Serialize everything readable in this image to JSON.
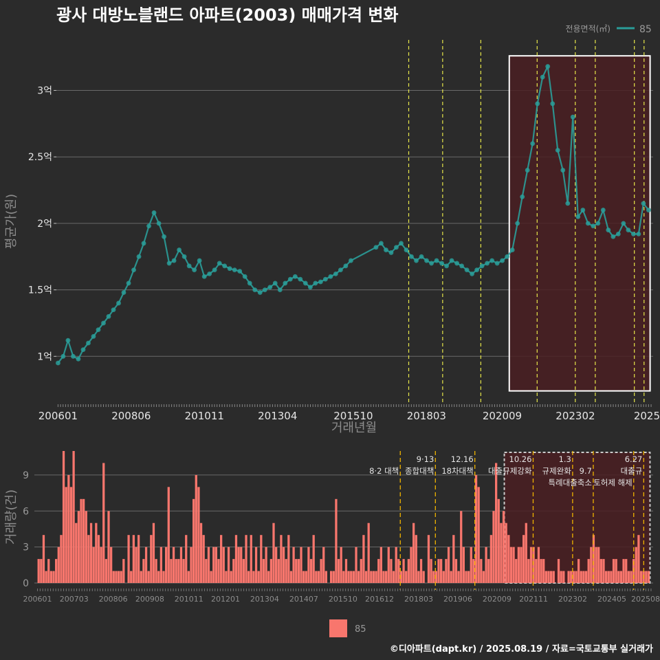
{
  "title": "광사 대방노블랜드 아파트(2003) 매매가격 변화",
  "footer": "©디아파트(dapt.kr) / 2025.08.19 / 자료=국토교통부 실거래가",
  "colors": {
    "background": "#2b2b2b",
    "price_series": "#2a9d99",
    "volume_bars": "#f8766d",
    "policy_line_top": "#e8e84a",
    "policy_line_bottom": "#f0b400",
    "highlight_fill": "#4a1f22",
    "highlight_border": "#ffffff"
  },
  "chart_data": [
    {
      "type": "line",
      "title": "광사 대방노블랜드 아파트(2003) 매매가격 변화",
      "xlabel": "거래년월",
      "ylabel": "평균가(원)",
      "legend": {
        "title": "전용면적(㎡)",
        "entries": [
          "85"
        ],
        "placement": "top-right"
      },
      "x_ticks": [
        "200601",
        "200806",
        "201011",
        "201304",
        "201510",
        "201803",
        "202009",
        "202302",
        "2025"
      ],
      "y_ticks": [
        "1억",
        "1.5억",
        "2억",
        "2.5억",
        "3억"
      ],
      "y_tick_values": [
        1.0,
        1.5,
        2.0,
        2.5,
        3.0
      ],
      "ylim": [
        0.65,
        3.38
      ],
      "xlim": [
        2005.9,
        2025.65
      ],
      "grid": true,
      "highlight_region": {
        "x_start": 2020.9,
        "x_end": 2025.55,
        "y_start": 0.74,
        "y_end": 3.26
      },
      "policy_lines": [
        2017.58,
        2018.7,
        2019.96,
        2021.82,
        2023.08,
        2023.74,
        2025.03,
        2025.35
      ],
      "series": [
        {
          "name": "85",
          "points": [
            [
              2006.0,
              0.95
            ],
            [
              2006.17,
              1.0
            ],
            [
              2006.33,
              1.12
            ],
            [
              2006.5,
              1.0
            ],
            [
              2006.67,
              0.98
            ],
            [
              2006.83,
              1.05
            ],
            [
              2007.0,
              1.1
            ],
            [
              2007.17,
              1.15
            ],
            [
              2007.33,
              1.2
            ],
            [
              2007.5,
              1.25
            ],
            [
              2007.67,
              1.3
            ],
            [
              2007.83,
              1.35
            ],
            [
              2008.0,
              1.4
            ],
            [
              2008.17,
              1.48
            ],
            [
              2008.33,
              1.55
            ],
            [
              2008.5,
              1.65
            ],
            [
              2008.67,
              1.75
            ],
            [
              2008.83,
              1.85
            ],
            [
              2009.0,
              1.98
            ],
            [
              2009.17,
              2.08
            ],
            [
              2009.33,
              2.0
            ],
            [
              2009.5,
              1.9
            ],
            [
              2009.67,
              1.7
            ],
            [
              2009.83,
              1.72
            ],
            [
              2010.0,
              1.8
            ],
            [
              2010.17,
              1.75
            ],
            [
              2010.33,
              1.68
            ],
            [
              2010.5,
              1.65
            ],
            [
              2010.67,
              1.72
            ],
            [
              2010.83,
              1.6
            ],
            [
              2011.0,
              1.62
            ],
            [
              2011.17,
              1.65
            ],
            [
              2011.33,
              1.7
            ],
            [
              2011.5,
              1.68
            ],
            [
              2011.67,
              1.66
            ],
            [
              2011.83,
              1.65
            ],
            [
              2012.0,
              1.64
            ],
            [
              2012.17,
              1.6
            ],
            [
              2012.33,
              1.55
            ],
            [
              2012.5,
              1.5
            ],
            [
              2012.67,
              1.48
            ],
            [
              2012.83,
              1.5
            ],
            [
              2013.0,
              1.52
            ],
            [
              2013.17,
              1.55
            ],
            [
              2013.33,
              1.5
            ],
            [
              2013.5,
              1.55
            ],
            [
              2013.67,
              1.58
            ],
            [
              2013.83,
              1.6
            ],
            [
              2014.0,
              1.58
            ],
            [
              2014.17,
              1.55
            ],
            [
              2014.33,
              1.52
            ],
            [
              2014.5,
              1.55
            ],
            [
              2014.67,
              1.56
            ],
            [
              2014.83,
              1.58
            ],
            [
              2015.0,
              1.6
            ],
            [
              2015.17,
              1.62
            ],
            [
              2015.33,
              1.65
            ],
            [
              2015.5,
              1.68
            ],
            [
              2015.67,
              1.72
            ],
            [
              2016.5,
              1.82
            ],
            [
              2016.67,
              1.85
            ],
            [
              2016.83,
              1.8
            ],
            [
              2017.0,
              1.78
            ],
            [
              2017.17,
              1.82
            ],
            [
              2017.33,
              1.85
            ],
            [
              2017.5,
              1.8
            ],
            [
              2017.67,
              1.75
            ],
            [
              2017.83,
              1.72
            ],
            [
              2018.0,
              1.75
            ],
            [
              2018.17,
              1.72
            ],
            [
              2018.33,
              1.7
            ],
            [
              2018.5,
              1.72
            ],
            [
              2018.67,
              1.7
            ],
            [
              2018.83,
              1.68
            ],
            [
              2019.0,
              1.72
            ],
            [
              2019.17,
              1.7
            ],
            [
              2019.33,
              1.68
            ],
            [
              2019.5,
              1.65
            ],
            [
              2019.67,
              1.62
            ],
            [
              2019.83,
              1.65
            ],
            [
              2020.0,
              1.68
            ],
            [
              2020.17,
              1.7
            ],
            [
              2020.33,
              1.72
            ],
            [
              2020.5,
              1.7
            ],
            [
              2020.67,
              1.72
            ],
            [
              2020.83,
              1.75
            ],
            [
              2021.0,
              1.8
            ],
            [
              2021.17,
              2.0
            ],
            [
              2021.33,
              2.2
            ],
            [
              2021.5,
              2.4
            ],
            [
              2021.67,
              2.6
            ],
            [
              2021.83,
              2.9
            ],
            [
              2022.0,
              3.1
            ],
            [
              2022.17,
              3.18
            ],
            [
              2022.33,
              2.9
            ],
            [
              2022.5,
              2.55
            ],
            [
              2022.67,
              2.4
            ],
            [
              2022.83,
              2.15
            ],
            [
              2023.0,
              2.8
            ],
            [
              2023.17,
              2.05
            ],
            [
              2023.33,
              2.1
            ],
            [
              2023.5,
              2.0
            ],
            [
              2023.67,
              1.98
            ],
            [
              2023.83,
              2.0
            ],
            [
              2024.0,
              2.1
            ],
            [
              2024.17,
              1.95
            ],
            [
              2024.33,
              1.9
            ],
            [
              2024.5,
              1.92
            ],
            [
              2024.67,
              2.0
            ],
            [
              2024.83,
              1.95
            ],
            [
              2025.0,
              1.92
            ],
            [
              2025.17,
              1.92
            ],
            [
              2025.33,
              2.15
            ],
            [
              2025.5,
              2.1
            ]
          ]
        }
      ]
    },
    {
      "type": "bar",
      "ylabel": "거래량(건)",
      "legend": {
        "entries": [
          "85"
        ],
        "placement": "bottom"
      },
      "x_ticks": [
        "200601",
        "200703",
        "200806",
        "200908",
        "201011",
        "201201",
        "201304",
        "201407",
        "201510",
        "201612",
        "201803",
        "201906",
        "202009",
        "202111",
        "202302",
        "202405",
        "202508"
      ],
      "y_ticks": [
        "0",
        "3",
        "6",
        "9"
      ],
      "ylim": [
        0,
        11
      ],
      "xlim": [
        2005.9,
        2025.65
      ],
      "highlight_region": {
        "x_start": 2020.9,
        "x_end": 2025.55
      },
      "policy_lines": [
        2017.58,
        2018.7,
        2019.96,
        2021.82,
        2023.08,
        2023.74,
        2025.03,
        2025.35
      ],
      "policy_labels": [
        {
          "date": "8.2",
          "text": "8·2 대책",
          "x": 2017.58,
          "row": 2
        },
        {
          "date": "9.13",
          "text": "9·13",
          "x": 2018.7,
          "row": 1
        },
        {
          "text": "종합대책",
          "x": 2018.7,
          "row": 2
        },
        {
          "text": "12.16",
          "x": 2019.96,
          "row": 1
        },
        {
          "text": "18차대책",
          "x": 2019.96,
          "row": 2
        },
        {
          "text": "10.26",
          "x": 2021.82,
          "row": 1
        },
        {
          "text": "대출규제강화",
          "x": 2021.82,
          "row": 2
        },
        {
          "text": "1.3",
          "x": 2023.08,
          "row": 1
        },
        {
          "text": "규제완화",
          "x": 2023.08,
          "row": 2
        },
        {
          "text": "9.7",
          "x": 2023.74,
          "row": 2
        },
        {
          "text": "특례대출축소",
          "x": 2023.74,
          "row": 3
        },
        {
          "text": "토허제 해제",
          "x": 2025.03,
          "row": 3
        },
        {
          "text": "6.27",
          "x": 2025.35,
          "row": 1
        },
        {
          "text": "대출규",
          "x": 2025.35,
          "row": 2
        }
      ],
      "series": [
        {
          "name": "85",
          "values": [
            2,
            2,
            4,
            1,
            2,
            1,
            1,
            2,
            3,
            4,
            11,
            8,
            9,
            8,
            11,
            5,
            6,
            7,
            7,
            6,
            4,
            5,
            3,
            5,
            4,
            3,
            10,
            2,
            6,
            3,
            1,
            1,
            1,
            1,
            2,
            0,
            4,
            1,
            4,
            3,
            4,
            1,
            2,
            3,
            1,
            4,
            5,
            2,
            1,
            3,
            1,
            3,
            8,
            2,
            3,
            2,
            2,
            3,
            2,
            4,
            1,
            3,
            7,
            9,
            8,
            5,
            4,
            2,
            3,
            1,
            3,
            3,
            2,
            4,
            3,
            1,
            3,
            1,
            2,
            4,
            3,
            3,
            2,
            4,
            1,
            4,
            1,
            3,
            1,
            4,
            2,
            3,
            1,
            2,
            5,
            3,
            2,
            4,
            3,
            2,
            4,
            1,
            3,
            2,
            2,
            3,
            1,
            1,
            3,
            2,
            4,
            1,
            1,
            2,
            3,
            1,
            0,
            1,
            1,
            7,
            2,
            3,
            1,
            2,
            1,
            1,
            1,
            3,
            1,
            2,
            4,
            1,
            5,
            1,
            1,
            1,
            2,
            3,
            1,
            1,
            3,
            2,
            1,
            3,
            2,
            1,
            2,
            1,
            2,
            3,
            5,
            4,
            1,
            2,
            1,
            0,
            4,
            2,
            1,
            1,
            2,
            2,
            1,
            2,
            3,
            1,
            4,
            2,
            1,
            6,
            3,
            1,
            1,
            3,
            2,
            9,
            8,
            2,
            1,
            3,
            2,
            4,
            6,
            10,
            7,
            5,
            6,
            5,
            4,
            3,
            3,
            2,
            3,
            3,
            4,
            5,
            2,
            3,
            3,
            2,
            3,
            2,
            2,
            1,
            1,
            1,
            1,
            0,
            2,
            1,
            1,
            0,
            1,
            1,
            1,
            1,
            2,
            1,
            1,
            1,
            2,
            3,
            4,
            3,
            3,
            2,
            2,
            1,
            1,
            1,
            2,
            2,
            1,
            1,
            2,
            2,
            1,
            1,
            2,
            3,
            4,
            1,
            1,
            1,
            1
          ]
        }
      ]
    }
  ]
}
